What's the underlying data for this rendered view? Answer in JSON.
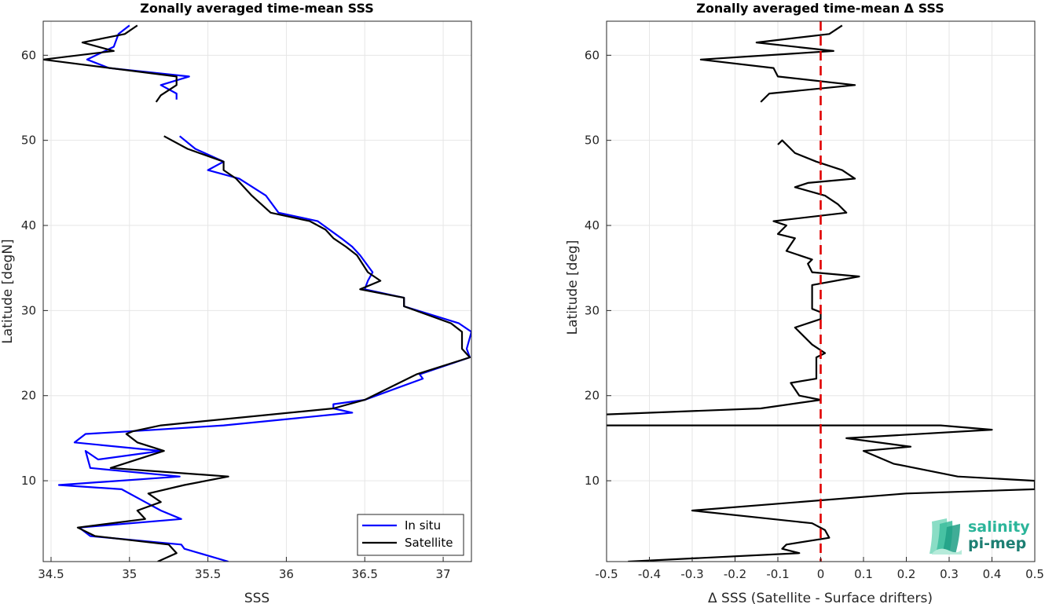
{
  "chart_data": [
    {
      "type": "line",
      "title": "Zonally averaged time-mean SSS",
      "xlabel": "SSS",
      "ylabel": "Latitude [degN]",
      "xlim": [
        34.45,
        37.18
      ],
      "ylim": [
        0.5,
        64
      ],
      "xticks": [
        "34.5",
        "35",
        "35.5",
        "36",
        "36.5",
        "37"
      ],
      "yticks": [
        "10",
        "20",
        "30",
        "40",
        "50",
        "60"
      ],
      "grid": true,
      "legend": "bottom-right",
      "series": [
        {
          "name": "In situ",
          "color": "#0000ff",
          "segments": [
            [
              [
                35.63,
                0.5
              ],
              [
                35.35,
                2.0
              ],
              [
                35.33,
                2.5
              ],
              [
                34.75,
                3.5
              ],
              [
                34.68,
                4.5
              ],
              [
                35.33,
                5.5
              ],
              [
                35.2,
                6.5
              ],
              [
                35.1,
                7.5
              ],
              [
                34.95,
                9.0
              ],
              [
                34.55,
                9.5
              ],
              [
                35.32,
                10.5
              ],
              [
                34.75,
                11.5
              ],
              [
                34.72,
                13.5
              ],
              [
                34.8,
                12.5
              ],
              [
                35.2,
                13.5
              ],
              [
                34.65,
                14.5
              ],
              [
                34.72,
                15.5
              ],
              [
                35.0,
                15.8
              ],
              [
                35.6,
                16.5
              ],
              [
                36.42,
                18.0
              ],
              [
                36.3,
                18.5
              ],
              [
                36.3,
                19.0
              ],
              [
                36.5,
                19.5
              ],
              [
                36.87,
                22.0
              ],
              [
                36.85,
                22.5
              ],
              [
                37.17,
                24.5
              ],
              [
                37.15,
                25.5
              ],
              [
                37.18,
                27.5
              ],
              [
                37.1,
                28.5
              ],
              [
                36.75,
                30.5
              ],
              [
                36.75,
                31.5
              ],
              [
                36.5,
                32.5
              ],
              [
                36.52,
                33.5
              ],
              [
                36.55,
                34.5
              ],
              [
                36.47,
                36.5
              ],
              [
                36.42,
                37.5
              ],
              [
                36.35,
                38.5
              ],
              [
                36.2,
                40.5
              ],
              [
                35.95,
                41.5
              ],
              [
                35.87,
                43.5
              ],
              [
                35.7,
                45.5
              ],
              [
                35.5,
                46.5
              ],
              [
                35.6,
                47.5
              ],
              [
                35.42,
                49.0
              ],
              [
                35.32,
                50.5
              ]
            ],
            [
              [
                35.3,
                54.8
              ],
              [
                35.3,
                55.5
              ],
              [
                35.2,
                56.5
              ],
              [
                35.38,
                57.5
              ],
              [
                34.87,
                58.5
              ],
              [
                34.73,
                59.5
              ],
              [
                34.9,
                61.0
              ],
              [
                34.93,
                62.5
              ],
              [
                35.0,
                63.5
              ]
            ]
          ]
        },
        {
          "name": "Satellite",
          "color": "#000000",
          "segments": [
            [
              [
                35.18,
                0.5
              ],
              [
                35.3,
                1.5
              ],
              [
                35.25,
                2.5
              ],
              [
                34.78,
                3.5
              ],
              [
                34.67,
                4.5
              ],
              [
                35.1,
                5.5
              ],
              [
                35.05,
                6.5
              ],
              [
                35.2,
                7.5
              ],
              [
                35.12,
                8.5
              ],
              [
                35.35,
                9.5
              ],
              [
                35.63,
                10.5
              ],
              [
                34.88,
                11.5
              ],
              [
                35.22,
                13.5
              ],
              [
                35.05,
                14.5
              ],
              [
                34.98,
                15.5
              ],
              [
                35.02,
                15.8
              ],
              [
                35.2,
                16.5
              ],
              [
                36.3,
                18.5
              ],
              [
                36.5,
                19.5
              ],
              [
                36.83,
                22.5
              ],
              [
                37.17,
                24.5
              ],
              [
                37.12,
                25.5
              ],
              [
                37.12,
                27.5
              ],
              [
                37.05,
                28.5
              ],
              [
                36.75,
                30.5
              ],
              [
                36.75,
                31.5
              ],
              [
                36.47,
                32.5
              ],
              [
                36.6,
                33.5
              ],
              [
                36.52,
                34.5
              ],
              [
                36.45,
                36.5
              ],
              [
                36.38,
                37.5
              ],
              [
                36.3,
                38.5
              ],
              [
                36.25,
                39.5
              ],
              [
                36.15,
                40.5
              ],
              [
                35.9,
                41.5
              ],
              [
                35.78,
                43.5
              ],
              [
                35.68,
                45.5
              ],
              [
                35.6,
                46.5
              ],
              [
                35.6,
                47.5
              ],
              [
                35.37,
                49.0
              ],
              [
                35.22,
                50.5
              ]
            ],
            [
              [
                35.17,
                54.5
              ],
              [
                35.2,
                55.3
              ],
              [
                35.3,
                56.5
              ],
              [
                35.3,
                57.5
              ],
              [
                34.45,
                59.5
              ],
              [
                34.9,
                60.5
              ],
              [
                34.7,
                61.5
              ],
              [
                34.97,
                62.5
              ],
              [
                35.05,
                63.5
              ]
            ]
          ]
        }
      ]
    },
    {
      "type": "line",
      "title": "Zonally averaged time-mean Δ SSS",
      "xlabel": "Δ SSS (Satellite - Surface drifters)",
      "ylabel": "Latitude [deg]",
      "xlim": [
        -0.5,
        0.5
      ],
      "ylim": [
        0.5,
        64
      ],
      "xticks": [
        "-0.5",
        "-0.4",
        "-0.3",
        "-0.2",
        "-0.1",
        "0",
        "0.1",
        "0.2",
        "0.3",
        "0.4",
        "0.5"
      ],
      "yticks": [
        "10",
        "20",
        "30",
        "40",
        "50",
        "60"
      ],
      "grid": true,
      "reference_line": {
        "x": 0,
        "color": "#e00000",
        "style": "dashed"
      },
      "series": [
        {
          "color": "#000000",
          "segments": [
            [
              [
                -0.45,
                0.5
              ],
              [
                -0.05,
                1.5
              ],
              [
                -0.09,
                2.0
              ],
              [
                -0.08,
                2.5
              ],
              [
                0.02,
                3.3
              ],
              [
                0.01,
                4.2
              ],
              [
                -0.02,
                5.0
              ],
              [
                -0.3,
                6.5
              ],
              [
                0.2,
                8.5
              ],
              [
                0.5,
                9.0
              ],
              [
                0.5,
                10.0
              ],
              [
                0.32,
                10.5
              ],
              [
                0.17,
                12.0
              ],
              [
                0.1,
                13.5
              ],
              [
                0.21,
                14.0
              ],
              [
                0.06,
                15.0
              ],
              [
                0.4,
                16.0
              ],
              [
                0.28,
                16.5
              ],
              [
                -0.5,
                16.5
              ]
            ],
            [
              [
                -0.5,
                17.8
              ],
              [
                -0.14,
                18.5
              ],
              [
                0.0,
                19.5
              ],
              [
                -0.05,
                20.0
              ],
              [
                -0.07,
                21.5
              ],
              [
                -0.01,
                22.0
              ],
              [
                -0.01,
                24.5
              ],
              [
                0.01,
                25.0
              ],
              [
                -0.02,
                26.0
              ],
              [
                -0.06,
                28.0
              ],
              [
                0.0,
                29.0
              ],
              [
                0.0,
                29.8
              ],
              [
                -0.02,
                30.2
              ],
              [
                -0.02,
                32.0
              ],
              [
                -0.02,
                33.0
              ],
              [
                0.09,
                34.0
              ],
              [
                -0.02,
                34.5
              ],
              [
                -0.03,
                35.5
              ],
              [
                -0.02,
                36.0
              ],
              [
                -0.08,
                37.0
              ],
              [
                -0.06,
                38.5
              ],
              [
                -0.1,
                39.0
              ],
              [
                -0.08,
                40.0
              ],
              [
                -0.11,
                40.5
              ],
              [
                0.06,
                41.5
              ],
              [
                0.04,
                42.5
              ],
              [
                0.01,
                43.5
              ],
              [
                -0.06,
                44.5
              ],
              [
                -0.03,
                45.0
              ],
              [
                0.08,
                45.5
              ],
              [
                0.05,
                46.5
              ],
              [
                -0.01,
                47.5
              ],
              [
                -0.06,
                48.5
              ],
              [
                -0.09,
                50.0
              ],
              [
                -0.1,
                49.5
              ]
            ],
            [
              [
                -0.14,
                54.5
              ],
              [
                -0.12,
                55.5
              ],
              [
                0.08,
                56.5
              ],
              [
                -0.1,
                57.5
              ],
              [
                -0.11,
                58.5
              ],
              [
                -0.28,
                59.5
              ],
              [
                0.03,
                60.5
              ],
              [
                -0.15,
                61.5
              ],
              [
                0.02,
                62.5
              ],
              [
                0.05,
                63.5
              ]
            ]
          ]
        }
      ]
    }
  ],
  "legend": {
    "items": [
      "In situ",
      "Satellite"
    ]
  },
  "logo": {
    "line1": "salinity",
    "line2": "pi-mep"
  }
}
